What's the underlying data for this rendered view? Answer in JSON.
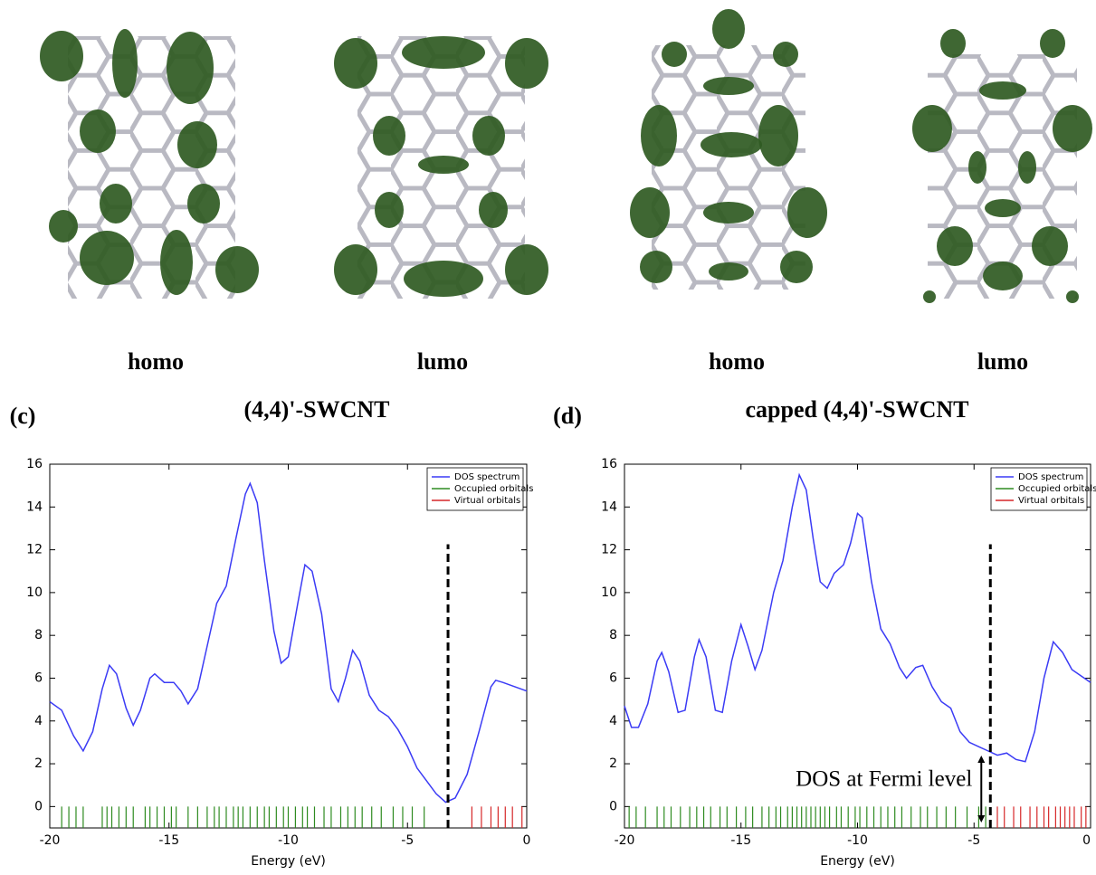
{
  "images": [
    {
      "label": "homo"
    },
    {
      "label": "lumo"
    },
    {
      "label": "homo"
    },
    {
      "label": "lumo"
    }
  ],
  "chart_data": [
    {
      "type": "line",
      "panel_label": "(c)",
      "title": "(4,4)'-SWCNT",
      "x_label": "Energy (eV)",
      "xlim": [
        -20,
        0
      ],
      "xticks": [
        -20,
        -15,
        -10,
        -5,
        0
      ],
      "ylim": [
        -1,
        16
      ],
      "yticks": [
        0,
        2,
        4,
        6,
        8,
        10,
        12,
        14,
        16
      ],
      "legend": "upper right",
      "fermi_level": -3.3,
      "x": [
        -20,
        -19.5,
        -19,
        -18.6,
        -18.2,
        -17.8,
        -17.5,
        -17.2,
        -16.8,
        -16.5,
        -16.2,
        -15.8,
        -15.6,
        -15.2,
        -14.8,
        -14.5,
        -14.2,
        -13.8,
        -13.4,
        -13,
        -12.6,
        -12.2,
        -11.8,
        -11.6,
        -11.3,
        -11,
        -10.6,
        -10.3,
        -10,
        -9.6,
        -9.3,
        -9,
        -8.6,
        -8.2,
        -7.9,
        -7.6,
        -7.3,
        -7,
        -6.6,
        -6.2,
        -5.8,
        -5.4,
        -5,
        -4.6,
        -4.2,
        -3.8,
        -3.4,
        -3,
        -2.5,
        -2,
        -1.5,
        -1.3,
        -1,
        -0.5,
        0
      ],
      "series": [
        {
          "name": "DOS spectrum",
          "color": "#3b3bf5",
          "values": [
            4.9,
            4.5,
            3.3,
            2.6,
            3.5,
            5.5,
            6.6,
            6.2,
            4.6,
            3.8,
            4.5,
            6.0,
            6.2,
            5.8,
            5.8,
            5.4,
            4.8,
            5.5,
            7.5,
            9.5,
            10.3,
            12.5,
            14.6,
            15.1,
            14.2,
            11.5,
            8.2,
            6.7,
            7.0,
            9.5,
            11.3,
            11.0,
            9.0,
            5.5,
            4.9,
            6.0,
            7.3,
            6.8,
            5.2,
            4.5,
            4.2,
            3.6,
            2.8,
            1.8,
            1.2,
            0.6,
            0.2,
            0.4,
            1.5,
            3.5,
            5.6,
            5.9,
            5.8,
            5.6,
            5.4
          ]
        }
      ],
      "orbitals": [
        {
          "name": "Occupied orbitals",
          "color": "#2e8b20",
          "x": [
            -19.5,
            -19.2,
            -18.9,
            -18.6,
            -17.8,
            -17.6,
            -17.4,
            -17.1,
            -16.8,
            -16.5,
            -16.0,
            -15.8,
            -15.5,
            -15.2,
            -14.9,
            -14.7,
            -14.2,
            -13.8,
            -13.4,
            -13.1,
            -12.9,
            -12.6,
            -12.3,
            -12.1,
            -11.9,
            -11.6,
            -11.3,
            -11.0,
            -10.8,
            -10.5,
            -10.2,
            -10.0,
            -9.7,
            -9.4,
            -9.2,
            -8.9,
            -8.5,
            -8.2,
            -7.8,
            -7.5,
            -7.2,
            -6.9,
            -6.5,
            -6.1,
            -5.6,
            -5.2,
            -4.8,
            -4.3
          ]
        },
        {
          "name": "Virtual orbitals",
          "color": "#d62728",
          "x": [
            -2.3,
            -1.9,
            -1.5,
            -1.2,
            -0.9,
            -0.6,
            -0.2
          ]
        }
      ]
    },
    {
      "type": "line",
      "panel_label": "(d)",
      "title": "capped (4,4)'-SWCNT",
      "x_label": "Energy (eV)",
      "xlim": [
        -20,
        0
      ],
      "xticks": [
        -20,
        -15,
        -10,
        -5,
        0
      ],
      "ylim": [
        -1,
        16
      ],
      "yticks": [
        0,
        2,
        4,
        6,
        8,
        10,
        12,
        14,
        16
      ],
      "legend": "upper right",
      "fermi_level": -4.3,
      "annotation": "DOS at Fermi level",
      "x": [
        -20,
        -19.7,
        -19.4,
        -19,
        -18.6,
        -18.4,
        -18.1,
        -17.7,
        -17.4,
        -17,
        -16.8,
        -16.5,
        -16.1,
        -15.8,
        -15.4,
        -15,
        -14.7,
        -14.4,
        -14.1,
        -13.6,
        -13.2,
        -12.8,
        -12.5,
        -12.2,
        -11.9,
        -11.6,
        -11.3,
        -11,
        -10.6,
        -10.3,
        -10,
        -9.8,
        -9.4,
        -9,
        -8.6,
        -8.2,
        -7.9,
        -7.5,
        -7.2,
        -6.8,
        -6.4,
        -6,
        -5.6,
        -5.2,
        -4.8,
        -4.4,
        -4,
        -3.6,
        -3.2,
        -2.8,
        -2.4,
        -2,
        -1.6,
        -1.2,
        -0.8,
        -0.4,
        0
      ],
      "series": [
        {
          "name": "DOS spectrum",
          "color": "#3b3bf5",
          "values": [
            4.7,
            3.7,
            3.7,
            4.8,
            6.8,
            7.2,
            6.3,
            4.4,
            4.5,
            7.0,
            7.8,
            7.0,
            4.5,
            4.4,
            6.8,
            8.5,
            7.5,
            6.4,
            7.3,
            10.0,
            11.5,
            14.0,
            15.5,
            14.8,
            12.5,
            10.5,
            10.2,
            10.9,
            11.3,
            12.3,
            13.7,
            13.5,
            10.5,
            8.3,
            7.6,
            6.5,
            6.0,
            6.5,
            6.6,
            5.6,
            4.9,
            4.6,
            3.5,
            3.0,
            2.8,
            2.6,
            2.4,
            2.5,
            2.2,
            2.1,
            3.5,
            6.0,
            7.7,
            7.2,
            6.4,
            6.1,
            5.8
          ]
        }
      ],
      "orbitals": [
        {
          "name": "Occupied orbitals",
          "color": "#2e8b20",
          "x": [
            -19.8,
            -19.5,
            -19.1,
            -18.6,
            -18.3,
            -18.0,
            -17.6,
            -17.2,
            -16.9,
            -16.6,
            -16.3,
            -15.9,
            -15.6,
            -15.2,
            -14.8,
            -14.5,
            -14.1,
            -13.8,
            -13.5,
            -13.3,
            -13.0,
            -12.8,
            -12.6,
            -12.4,
            -12.2,
            -12.0,
            -11.8,
            -11.6,
            -11.4,
            -11.2,
            -10.9,
            -10.7,
            -10.4,
            -10.1,
            -9.9,
            -9.6,
            -9.3,
            -9.0,
            -8.7,
            -8.4,
            -8.1,
            -7.7,
            -7.3,
            -7.0,
            -6.6,
            -6.2,
            -5.8,
            -5.3,
            -4.8,
            -4.5
          ]
        },
        {
          "name": "Virtual orbitals",
          "color": "#d62728",
          "x": [
            -4.0,
            -3.7,
            -3.3,
            -3.0,
            -2.6,
            -2.3,
            -2.0,
            -1.8,
            -1.5,
            -1.3,
            -1.1,
            -0.9,
            -0.7,
            -0.4,
            -0.2
          ]
        }
      ]
    }
  ]
}
